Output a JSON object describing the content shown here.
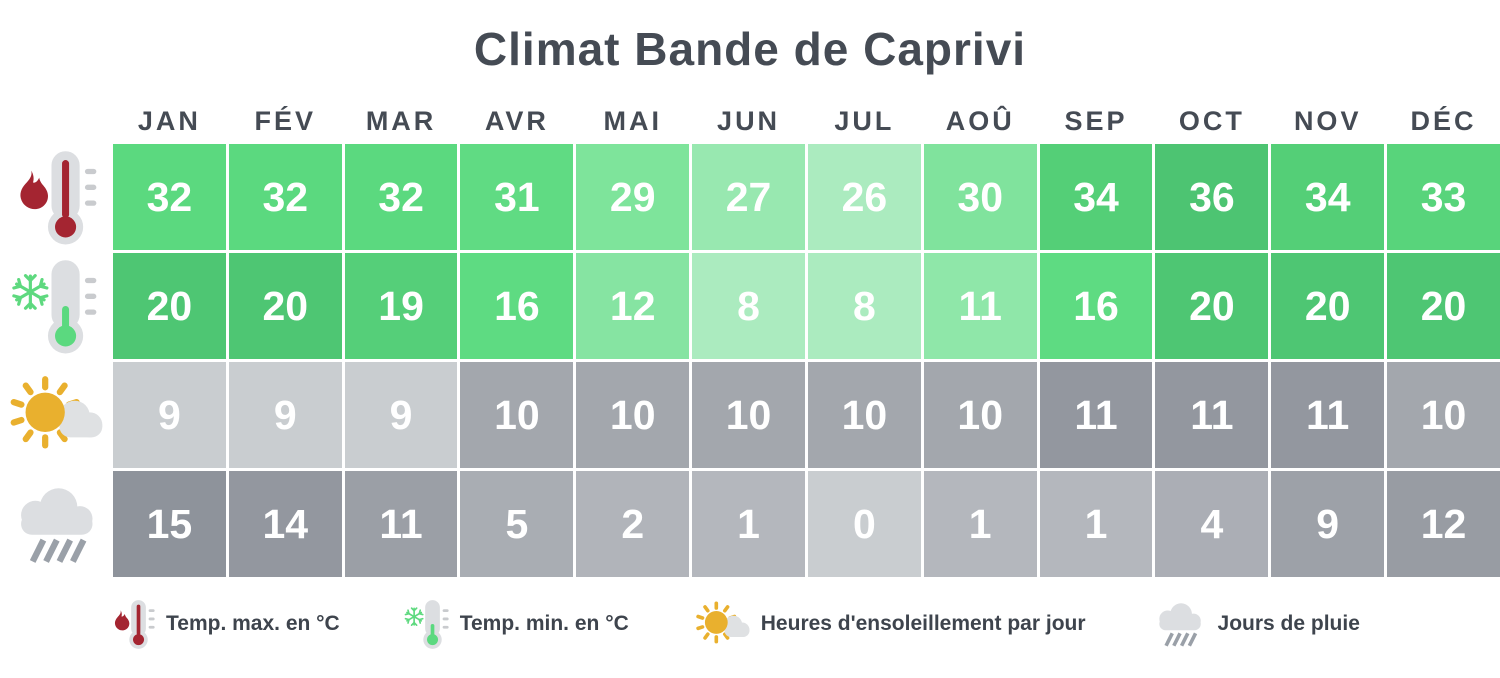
{
  "title": "Climat Bande de Caprivi",
  "chart_data": {
    "type": "heatmap",
    "title": "Climat Bande de Caprivi",
    "categories": [
      "JAN",
      "FÉV",
      "MAR",
      "AVR",
      "MAI",
      "JUN",
      "JUL",
      "AOÛ",
      "SEP",
      "OCT",
      "NOV",
      "DÉC"
    ],
    "series": [
      {
        "name": "temp-max",
        "legend_label": "Temp. max. en °C",
        "icon": "thermometer-hot-icon",
        "values": [
          32,
          32,
          32,
          31,
          29,
          27,
          26,
          30,
          34,
          36,
          34,
          33
        ],
        "cell_colors": [
          "#5bd97f",
          "#5bd97f",
          "#5bd97f",
          "#60db83",
          "#7ee49b",
          "#98e8b0",
          "#abebbf",
          "#80e39d",
          "#54cf77",
          "#4dc472",
          "#54cf77",
          "#58d47b"
        ]
      },
      {
        "name": "temp-min",
        "legend_label": "Temp. min. en °C",
        "icon": "thermometer-cold-icon",
        "values": [
          20,
          20,
          19,
          16,
          12,
          8,
          8,
          11,
          16,
          20,
          20,
          20
        ],
        "cell_colors": [
          "#4ec673",
          "#4ec673",
          "#55cf79",
          "#5edb82",
          "#86e4a2",
          "#abebbf",
          "#abebbf",
          "#8fe7a9",
          "#5edb82",
          "#4ec673",
          "#4ec673",
          "#4ec673"
        ]
      },
      {
        "name": "sun-hours",
        "legend_label": "Heures d'ensoleillement par jour",
        "icon": "sun-cloud-icon",
        "values": [
          9,
          9,
          9,
          10,
          10,
          10,
          10,
          10,
          11,
          11,
          11,
          10
        ],
        "cell_colors": [
          "#c9cdd0",
          "#c9cdd0",
          "#c9cdd0",
          "#a3a7ad",
          "#a3a7ad",
          "#a3a7ad",
          "#a3a7ad",
          "#a3a7ad",
          "#93979f",
          "#93979f",
          "#93979f",
          "#a3a7ad"
        ]
      },
      {
        "name": "rain-days",
        "legend_label": "Jours de pluie",
        "icon": "rain-cloud-icon",
        "values": [
          15,
          14,
          11,
          5,
          2,
          1,
          0,
          1,
          1,
          4,
          9,
          12
        ],
        "cell_colors": [
          "#8e939b",
          "#93979f",
          "#9b9fa6",
          "#a9adb3",
          "#b1b4ba",
          "#b4b7bd",
          "#c9cdd0",
          "#b4b7bd",
          "#b4b7bd",
          "#abaeb5",
          "#9da1a8",
          "#989ca3"
        ]
      }
    ]
  },
  "legend": {
    "items": [
      {
        "icon": "thermometer-hot-icon",
        "label": "Temp. max. en °C"
      },
      {
        "icon": "thermometer-cold-icon",
        "label": "Temp. min. en °C"
      },
      {
        "icon": "sun-cloud-icon",
        "label": "Heures d'ensoleillement par jour"
      },
      {
        "icon": "rain-cloud-icon",
        "label": "Jours de pluie"
      }
    ]
  },
  "colors": {
    "title_text": "#454b54",
    "month_text": "#454b54",
    "cell_text": "#ffffff",
    "legend_text": "#3e444d",
    "hot_red": "#a42531",
    "cold_green": "#5bd97f",
    "sun_yellow": "#e9b02e",
    "icon_gray": "#dcdee1",
    "rain_stroke_gray": "#9aa0a8"
  }
}
